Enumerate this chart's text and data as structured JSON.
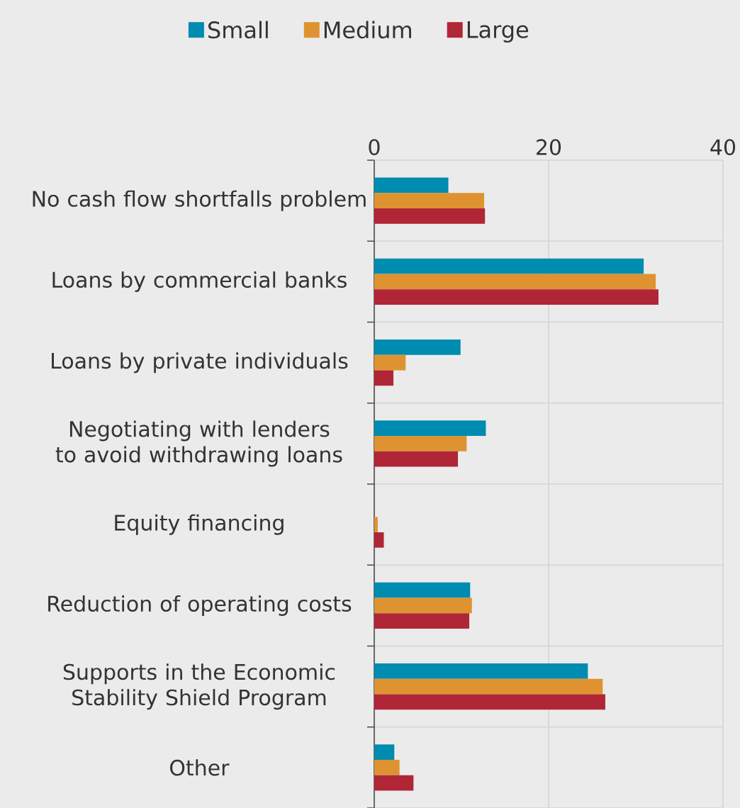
{
  "chart_data": {
    "type": "bar",
    "orientation": "horizontal",
    "categories": [
      "No cash flow shortfalls problem",
      "Loans by commercial banks",
      "Loans by private individuals",
      "Negotiating with lenders to avoid withdrawing loans",
      "Equity financing",
      "Reduction of operating costs",
      "Supports in the Economic Stability Shield Program",
      "Other"
    ],
    "series": [
      {
        "name": "Small",
        "color": "#008bb0",
        "values": [
          8.5,
          30.9,
          9.9,
          12.8,
          0,
          11.0,
          24.5,
          2.3
        ]
      },
      {
        "name": "Medium",
        "color": "#de9330",
        "values": [
          12.6,
          32.3,
          3.6,
          10.6,
          0.4,
          11.2,
          26.2,
          2.9
        ]
      },
      {
        "name": "Large",
        "color": "#b02637",
        "values": [
          12.7,
          32.6,
          2.2,
          9.6,
          1.1,
          10.9,
          26.5,
          4.5
        ]
      }
    ],
    "xlim": [
      0,
      40
    ],
    "xticks": [
      0,
      20,
      40
    ],
    "grid": true,
    "legend": "top"
  }
}
